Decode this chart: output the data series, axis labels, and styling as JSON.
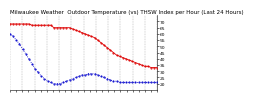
{
  "title": "Milwaukee Weather  Outdoor Temperature (vs) THSW Index per Hour (Last 24 Hours)",
  "background_color": "#ffffff",
  "grid_color": "#888888",
  "temp_color": "#dd0000",
  "thsw_color": "#0000cc",
  "ylim": [
    15,
    75
  ],
  "ytick_values": [
    20,
    25,
    30,
    35,
    40,
    45,
    50,
    55,
    60,
    65,
    70
  ],
  "hours": 48,
  "temp_values": [
    68,
    68,
    68,
    68,
    68,
    68,
    68,
    67,
    67,
    67,
    67,
    67,
    67,
    67,
    65,
    65,
    65,
    65,
    65,
    65,
    64,
    63,
    62,
    61,
    60,
    59,
    58,
    57,
    55,
    53,
    51,
    49,
    47,
    45,
    43,
    42,
    41,
    40,
    39,
    38,
    37,
    36,
    35,
    34,
    34,
    33,
    33,
    33
  ],
  "thsw_values": [
    60,
    58,
    55,
    52,
    48,
    44,
    40,
    36,
    32,
    29,
    26,
    24,
    22,
    21,
    20,
    20,
    20,
    21,
    22,
    23,
    24,
    25,
    26,
    27,
    27,
    28,
    28,
    28,
    27,
    26,
    25,
    24,
    23,
    22,
    22,
    21,
    21,
    21,
    21,
    21,
    21,
    21,
    21,
    21,
    21,
    21,
    21,
    21
  ],
  "title_fontsize": 4.0,
  "tick_fontsize": 3.2,
  "line_width": 0.6,
  "marker_size": 1.0,
  "num_vgrid": 13
}
